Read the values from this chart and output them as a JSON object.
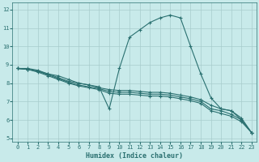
{
  "xlabel": "Humidex (Indice chaleur)",
  "ylabel": "",
  "xlim": [
    -0.5,
    23.5
  ],
  "ylim": [
    4.8,
    12.4
  ],
  "xticks": [
    0,
    1,
    2,
    3,
    4,
    5,
    6,
    7,
    8,
    9,
    10,
    11,
    12,
    13,
    14,
    15,
    16,
    17,
    18,
    19,
    20,
    21,
    22,
    23
  ],
  "yticks": [
    5,
    6,
    7,
    8,
    9,
    10,
    11,
    12
  ],
  "background_color": "#c8eaea",
  "line_color": "#2a7070",
  "grid_color": "#a8cccc",
  "curves": [
    {
      "x": [
        0,
        1,
        2,
        3,
        4,
        5,
        6,
        7,
        8,
        9,
        10,
        11,
        12,
        13,
        14,
        15,
        16,
        17,
        18,
        19,
        20,
        21,
        22,
        23
      ],
      "y": [
        8.8,
        8.8,
        8.7,
        8.5,
        8.4,
        8.2,
        8.0,
        7.9,
        7.8,
        6.6,
        8.8,
        10.5,
        10.9,
        11.3,
        11.55,
        11.7,
        11.55,
        10.0,
        8.5,
        7.2,
        6.6,
        6.5,
        6.0,
        5.3
      ]
    },
    {
      "x": [
        0,
        1,
        2,
        3,
        4,
        5,
        6,
        7,
        8,
        9,
        10,
        11,
        12,
        13,
        14,
        15,
        16,
        17,
        18,
        19,
        20,
        21,
        22,
        23
      ],
      "y": [
        8.8,
        8.75,
        8.65,
        8.5,
        8.3,
        8.1,
        8.0,
        7.9,
        7.75,
        7.65,
        7.6,
        7.6,
        7.55,
        7.5,
        7.5,
        7.45,
        7.35,
        7.25,
        7.1,
        6.8,
        6.6,
        6.5,
        6.1,
        5.3
      ]
    },
    {
      "x": [
        0,
        1,
        2,
        3,
        4,
        5,
        6,
        7,
        8,
        9,
        10,
        11,
        12,
        13,
        14,
        15,
        16,
        17,
        18,
        19,
        20,
        21,
        22,
        23
      ],
      "y": [
        8.8,
        8.75,
        8.65,
        8.45,
        8.25,
        8.05,
        7.9,
        7.8,
        7.7,
        7.55,
        7.5,
        7.5,
        7.45,
        7.4,
        7.4,
        7.35,
        7.25,
        7.15,
        7.0,
        6.6,
        6.5,
        6.3,
        6.0,
        5.3
      ]
    },
    {
      "x": [
        0,
        1,
        2,
        3,
        4,
        5,
        6,
        7,
        8,
        9,
        10,
        11,
        12,
        13,
        14,
        15,
        16,
        17,
        18,
        19,
        20,
        21,
        22,
        23
      ],
      "y": [
        8.8,
        8.75,
        8.6,
        8.4,
        8.2,
        8.0,
        7.85,
        7.75,
        7.65,
        7.45,
        7.4,
        7.4,
        7.35,
        7.3,
        7.3,
        7.25,
        7.15,
        7.05,
        6.9,
        6.5,
        6.35,
        6.2,
        5.9,
        5.3
      ]
    }
  ]
}
